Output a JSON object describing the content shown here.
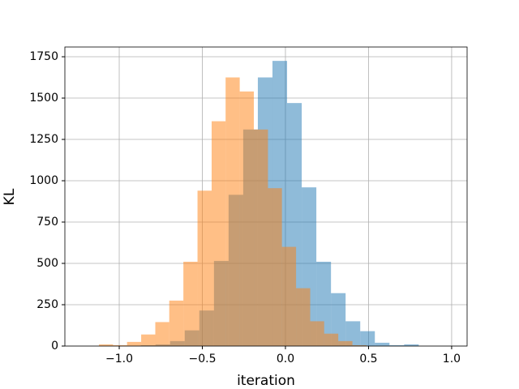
{
  "chart_data": {
    "type": "histogram",
    "xlabel": "iteration",
    "ylabel": "KL",
    "series": [
      {
        "color": "#1f77b4",
        "bins": [
          -0.958,
          -0.87,
          -0.782,
          -0.694,
          -0.606,
          -0.518,
          -0.43,
          -0.342,
          -0.254,
          -0.166,
          -0.078,
          0.01,
          0.098,
          0.186,
          0.274,
          0.362,
          0.45,
          0.538,
          0.626,
          0.714,
          0.802
        ],
        "values": [
          2,
          5,
          10,
          30,
          95,
          215,
          515,
          915,
          1310,
          1625,
          1725,
          1470,
          960,
          510,
          320,
          150,
          90,
          20,
          5,
          10
        ]
      },
      {
        "color": "#ff7f0e",
        "bins": [
          -1.122,
          -1.037,
          -0.953,
          -0.868,
          -0.783,
          -0.699,
          -0.614,
          -0.529,
          -0.444,
          -0.36,
          -0.275,
          -0.19,
          -0.105,
          -0.021,
          0.064,
          0.149,
          0.233,
          0.318,
          0.403,
          0.488
        ],
        "values": [
          10,
          5,
          25,
          70,
          145,
          275,
          510,
          940,
          1360,
          1625,
          1540,
          1310,
          955,
          600,
          350,
          150,
          75,
          30,
          5
        ]
      }
    ],
    "xlim": [
      -1.327,
      1.093
    ],
    "ylim": [
      0,
      1809
    ],
    "xticks": [
      {
        "value": -1.0,
        "label": "−1.0"
      },
      {
        "value": -0.5,
        "label": "−0.5"
      },
      {
        "value": 0.0,
        "label": "0.0"
      },
      {
        "value": 0.5,
        "label": "0.5"
      },
      {
        "value": 1.0,
        "label": "1.0"
      }
    ],
    "yticks": [
      0,
      250,
      500,
      750,
      1000,
      1250,
      1500,
      1750
    ],
    "grid": true
  }
}
